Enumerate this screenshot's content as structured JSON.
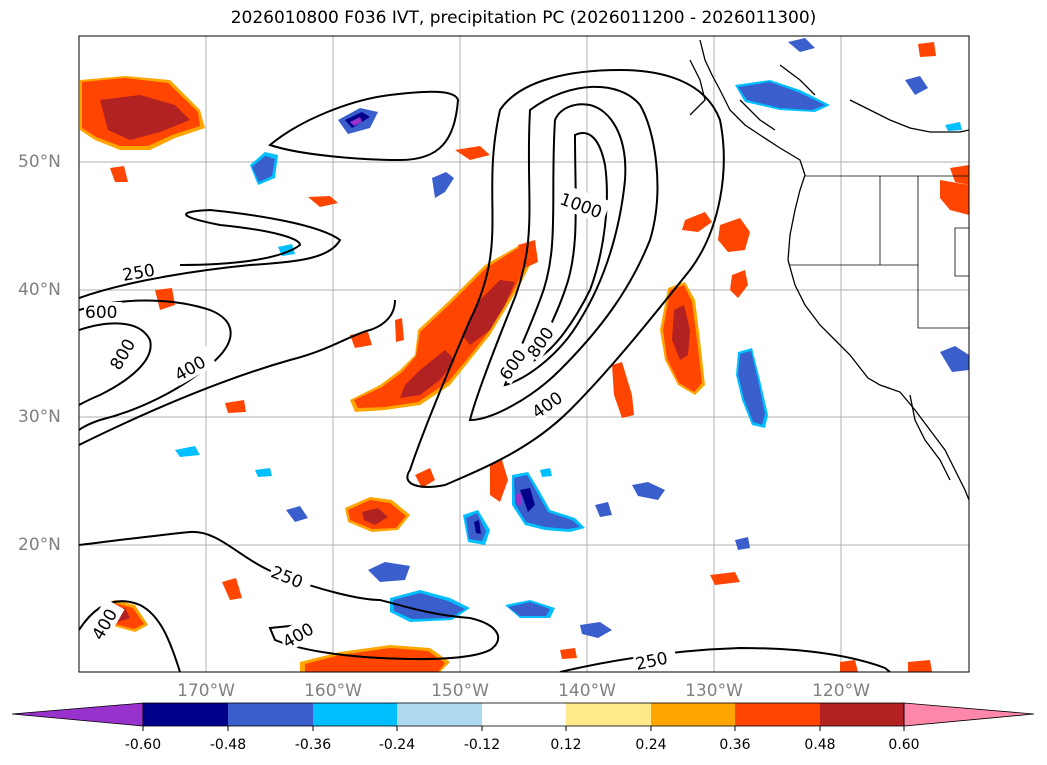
{
  "title": "2026010800 F036 IVT, precipitation PC (2026011200 - 2026011300)",
  "map": {
    "lat_labels": [
      "50°N",
      "40°N",
      "30°N",
      "20°N"
    ],
    "lon_labels": [
      "170°W",
      "160°W",
      "150°W",
      "140°W",
      "130°W",
      "120°W"
    ],
    "contour_labels": [
      "1000",
      "250",
      "600",
      "800",
      "400",
      "600",
      "800",
      "400",
      "250",
      "250",
      "400",
      "400"
    ],
    "contour_color": "#000000"
  },
  "colorbar": {
    "levels": [
      "-0.60",
      "-0.48",
      "-0.36",
      "-0.24",
      "-0.12",
      "0.12",
      "0.24",
      "0.36",
      "0.48",
      "0.60"
    ],
    "colors": [
      "#9932cc",
      "#00008b",
      "#3a5fcd",
      "#00bfff",
      "#add8f0",
      "#ffffff",
      "#ffe98a",
      "#ffa500",
      "#ff4500",
      "#b22222",
      "#ff88aa"
    ]
  }
}
